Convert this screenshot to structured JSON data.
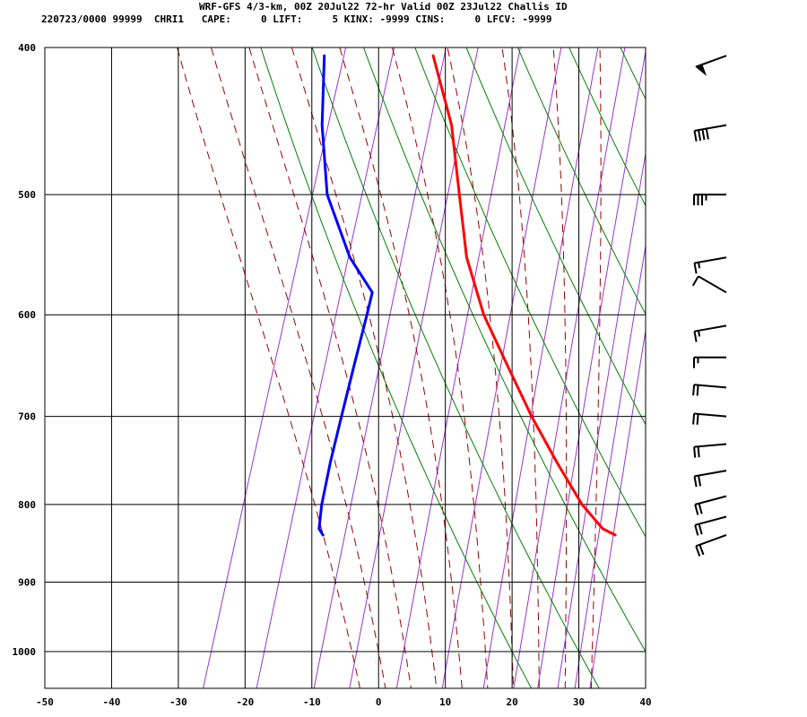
{
  "header": {
    "title": "WRF-GFS 4/3-km, 00Z 20Jul22 72-hr Valid 00Z 23Jul22 Challis ID",
    "stats": "220723/0000 99999  CHRI1   CAPE:     0 LIFT:     5 KINX: -9999 CINS:     0 LFCV: -9999"
  },
  "colors": {
    "temperature": "#ff0000",
    "dewpoint": "#0000ff",
    "dry_adiabat": "#008000",
    "moist_adiabat": "#990000",
    "mixing_ratio": "#9933cc",
    "grid": "#000000"
  },
  "chart_data": {
    "type": "line",
    "chart_kind": "skew-T log-P sounding",
    "title": "",
    "xlabel": "",
    "ylabel": "",
    "x_ticks": [
      "-50",
      "-40",
      "-30",
      "-20",
      "-10",
      "0",
      "10",
      "20",
      "30",
      "40"
    ],
    "y_ticks": [
      "400",
      "500",
      "600",
      "700",
      "800",
      "900",
      "1000"
    ],
    "xlim": [
      -50,
      40
    ],
    "ylim": [
      1040,
      400
    ],
    "y_scale": "log",
    "grid": true,
    "series": [
      {
        "role": "temperature",
        "color": "#ff0000",
        "points": [
          [
            838,
            29.7
          ],
          [
            830,
            27.5
          ],
          [
            800,
            23.2
          ],
          [
            750,
            17.3
          ],
          [
            700,
            11.3
          ],
          [
            650,
            5.4
          ],
          [
            600,
            -0.9
          ],
          [
            550,
            -6.3
          ],
          [
            500,
            -10.5
          ],
          [
            450,
            -15.1
          ],
          [
            405,
            -21.3
          ]
        ]
      },
      {
        "role": "dewpoint",
        "color": "#0000ff",
        "points": [
          [
            838,
            -14.1
          ],
          [
            830,
            -15.0
          ],
          [
            800,
            -15.8
          ],
          [
            750,
            -16.6
          ],
          [
            700,
            -17.2
          ],
          [
            650,
            -17.8
          ],
          [
            600,
            -18.4
          ],
          [
            580,
            -18.7
          ],
          [
            550,
            -23.8
          ],
          [
            500,
            -30.3
          ],
          [
            450,
            -34.5
          ],
          [
            405,
            -37.6
          ]
        ]
      }
    ],
    "reference_lines": {
      "dry_adiabats_theta_C": [
        20,
        30,
        40,
        50,
        60,
        70,
        80,
        90,
        100,
        110,
        120,
        130
      ],
      "moist_adiabats_theta_w_C": [
        -4,
        0,
        4,
        8,
        12,
        16,
        20,
        24,
        28,
        32
      ],
      "mixing_ratio_g_per_kg": [
        0.5,
        1,
        2,
        3,
        5,
        8,
        12,
        16,
        20,
        24,
        28,
        32
      ]
    },
    "wind_barbs": [
      {
        "pressure": 405,
        "direction_deg": 250,
        "speed_kt": 50
      },
      {
        "pressure": 450,
        "direction_deg": 260,
        "speed_kt": 40
      },
      {
        "pressure": 500,
        "direction_deg": 270,
        "speed_kt": 35
      },
      {
        "pressure": 550,
        "direction_deg": 260,
        "speed_kt": 15
      },
      {
        "pressure": 580,
        "direction_deg": 300,
        "speed_kt": 10
      },
      {
        "pressure": 610,
        "direction_deg": 260,
        "speed_kt": 15
      },
      {
        "pressure": 640,
        "direction_deg": 270,
        "speed_kt": 15
      },
      {
        "pressure": 670,
        "direction_deg": 275,
        "speed_kt": 20
      },
      {
        "pressure": 700,
        "direction_deg": 275,
        "speed_kt": 20
      },
      {
        "pressure": 730,
        "direction_deg": 265,
        "speed_kt": 20
      },
      {
        "pressure": 760,
        "direction_deg": 260,
        "speed_kt": 20
      },
      {
        "pressure": 790,
        "direction_deg": 255,
        "speed_kt": 20
      },
      {
        "pressure": 815,
        "direction_deg": 255,
        "speed_kt": 20
      },
      {
        "pressure": 838,
        "direction_deg": 250,
        "speed_kt": 20
      }
    ]
  }
}
